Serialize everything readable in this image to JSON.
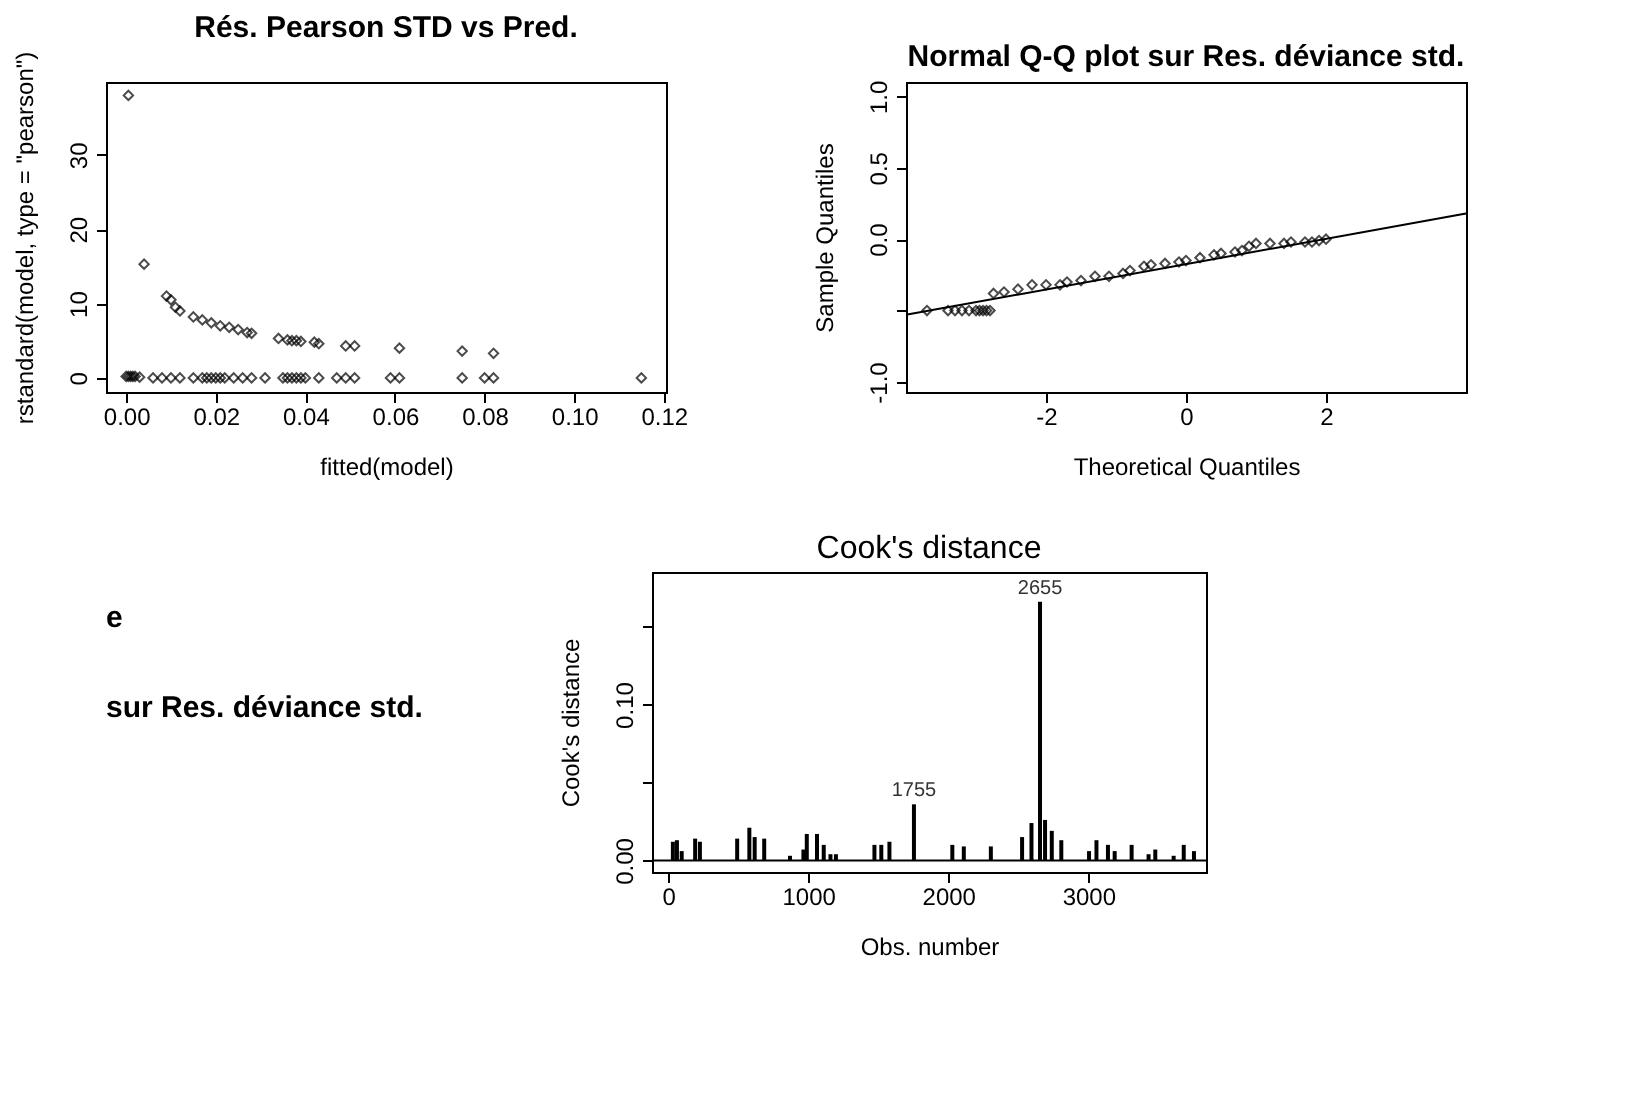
{
  "chart_data": [
    {
      "type": "scatter",
      "title": "Rés. Pearson STD vs Pred.",
      "xlabel": "fitted(model)",
      "ylabel": "rstandard(model, type = \"pearson\")",
      "xlim": [
        -0.0045,
        0.1205
      ],
      "ylim": [
        -1.9,
        39.8
      ],
      "xticks": [
        {
          "value": 0,
          "label": "0.00"
        },
        {
          "value": 0.02,
          "label": "0.02"
        },
        {
          "value": 0.04,
          "label": "0.04"
        },
        {
          "value": 0.06,
          "label": "0.06"
        },
        {
          "value": 0.08,
          "label": "0.08"
        },
        {
          "value": 0.1,
          "label": "0.10"
        },
        {
          "value": 0.12,
          "label": "0.12"
        }
      ],
      "yticks": [
        0,
        10,
        20,
        30
      ],
      "grid": false,
      "marker": "diamond",
      "series": [
        {
          "color": "#000000",
          "x": [
            0.0005,
            0.004,
            0.009,
            0.01,
            0.011,
            0.012,
            0.015,
            0.017,
            0.019,
            0.021,
            0.023,
            0.025,
            0.027,
            0.028,
            0.034,
            0.036,
            0.037,
            0.038,
            0.039,
            0.042,
            0.043,
            0.049,
            0.051,
            0.061,
            0.075,
            0.082,
            0.0,
            0.0005,
            0.001,
            0.0015,
            0.002,
            0.003,
            0.006,
            0.008,
            0.01,
            0.012,
            0.015,
            0.017,
            0.018,
            0.019,
            0.02,
            0.021,
            0.022,
            0.024,
            0.026,
            0.028,
            0.031,
            0.035,
            0.036,
            0.037,
            0.038,
            0.039,
            0.04,
            0.043,
            0.047,
            0.049,
            0.051,
            0.059,
            0.061,
            0.075,
            0.08,
            0.082,
            0.115
          ],
          "values": [
            38,
            15.3,
            11,
            10.5,
            9.5,
            9,
            8.2,
            7.8,
            7.4,
            7,
            6.8,
            6.5,
            6.1,
            6,
            5.3,
            5.1,
            5,
            5,
            4.9,
            4.8,
            4.6,
            4.3,
            4.3,
            4,
            3.6,
            3.3,
            0.2,
            0.2,
            0.2,
            0.2,
            0.2,
            0.1,
            0,
            0,
            0,
            0,
            0,
            0,
            0,
            0,
            0,
            0,
            0,
            0,
            0,
            0,
            0,
            0,
            0,
            0,
            0,
            0,
            0,
            0,
            0,
            0,
            0,
            0,
            0,
            0,
            0,
            0,
            0
          ]
        }
      ]
    },
    {
      "type": "scatter",
      "title": "Normal Q-Q plot sur Res. déviance std.",
      "xlabel": "Theoretical Quantiles",
      "ylabel": "Sample Quantiles",
      "xlim": [
        -4.0,
        4.0
      ],
      "ylim": [
        -1.07,
        1.1
      ],
      "xticks": [
        -2,
        0,
        2
      ],
      "yticks": [
        {
          "value": -1,
          "label": "-1.0"
        },
        {
          "value": -0.5,
          "label": null
        },
        {
          "value": 0,
          "label": "0.0"
        },
        {
          "value": 0.5,
          "label": "0.5"
        },
        {
          "value": 1,
          "label": "1.0"
        }
      ],
      "grid": false,
      "series": [
        {
          "marker": "diamond",
          "color": "#000000",
          "x": [
            -3.7,
            -3.4,
            -3.3,
            -3.2,
            -3.1,
            -3.0,
            -2.95,
            -2.9,
            -2.85,
            -2.8,
            -2.75,
            -2.6,
            -2.4,
            -2.2,
            -2.0,
            -1.8,
            -1.7,
            -1.5,
            -1.3,
            -1.1,
            -0.9,
            -0.8,
            -0.6,
            -0.5,
            -0.3,
            -0.1,
            0.0,
            0.2,
            0.4,
            0.5,
            0.7,
            0.8,
            0.9,
            1.0,
            1.2,
            1.4,
            1.5,
            1.7,
            1.8,
            1.9,
            2.0
          ],
          "values": [
            -0.5,
            -0.5,
            -0.5,
            -0.5,
            -0.5,
            -0.5,
            -0.5,
            -0.5,
            -0.5,
            -0.5,
            -0.38,
            -0.37,
            -0.35,
            -0.32,
            -0.32,
            -0.32,
            -0.3,
            -0.29,
            -0.26,
            -0.26,
            -0.24,
            -0.22,
            -0.19,
            -0.18,
            -0.17,
            -0.16,
            -0.15,
            -0.13,
            -0.11,
            -0.1,
            -0.09,
            -0.08,
            -0.05,
            -0.03,
            -0.03,
            -0.03,
            -0.02,
            -0.02,
            -0.02,
            -0.01,
            0
          ]
        },
        {
          "type": "line",
          "marker": "none",
          "color": "#000000",
          "x": [
            -4.0,
            4.0
          ],
          "values": [
            -0.53,
            0.18
          ]
        }
      ]
    },
    {
      "type": "other",
      "annotations": [
        "e",
        "sur Res. déviance std."
      ]
    },
    {
      "type": "bar",
      "title": "Cook's distance",
      "xlabel": "Obs. number",
      "ylabel": "Cook's distance",
      "xlim": [
        -115,
        3840
      ],
      "ylim": [
        -0.0074,
        0.185
      ],
      "xticks": [
        0,
        1000,
        2000,
        3000
      ],
      "yticks": [
        {
          "value": 0,
          "label": "0.00"
        },
        {
          "value": 0.05,
          "label": null
        },
        {
          "value": 0.1,
          "label": "0.10"
        },
        {
          "value": 0.15,
          "label": null
        }
      ],
      "grid": false,
      "x": [
        34,
        63,
        97,
        193,
        227,
        493,
        580,
        618,
        686,
        870,
        966,
        990,
        1063,
        1111,
        1159,
        1198,
        1473,
        1522,
        1580,
        1755,
        2029,
        2111,
        2304,
        2527,
        2594,
        2655,
        2691,
        2739,
        2807,
        3005,
        3058,
        3140,
        3188,
        3309,
        3430,
        3478,
        3609,
        3681,
        3754
      ],
      "series": [
        {
          "color": "#000000",
          "values": [
            0.012,
            0.013,
            0.006,
            0.014,
            0.012,
            0.014,
            0.021,
            0.015,
            0.014,
            0.003,
            0.007,
            0.017,
            0.017,
            0.01,
            0.004,
            0.004,
            0.01,
            0.01,
            0.012,
            0.036,
            0.01,
            0.009,
            0.009,
            0.015,
            0.024,
            0.166,
            0.026,
            0.019,
            0.013,
            0.006,
            0.013,
            0.01,
            0.006,
            0.01,
            0.004,
            0.007,
            0.003,
            0.01,
            0.006
          ]
        }
      ],
      "ref_lines": [
        {
          "axis": "y",
          "value": 0
        }
      ],
      "annotations": [
        {
          "text": "2655",
          "x": 2655,
          "y": 0.166
        },
        {
          "text": "1755",
          "x": 1755,
          "y": 0.036
        }
      ]
    }
  ]
}
